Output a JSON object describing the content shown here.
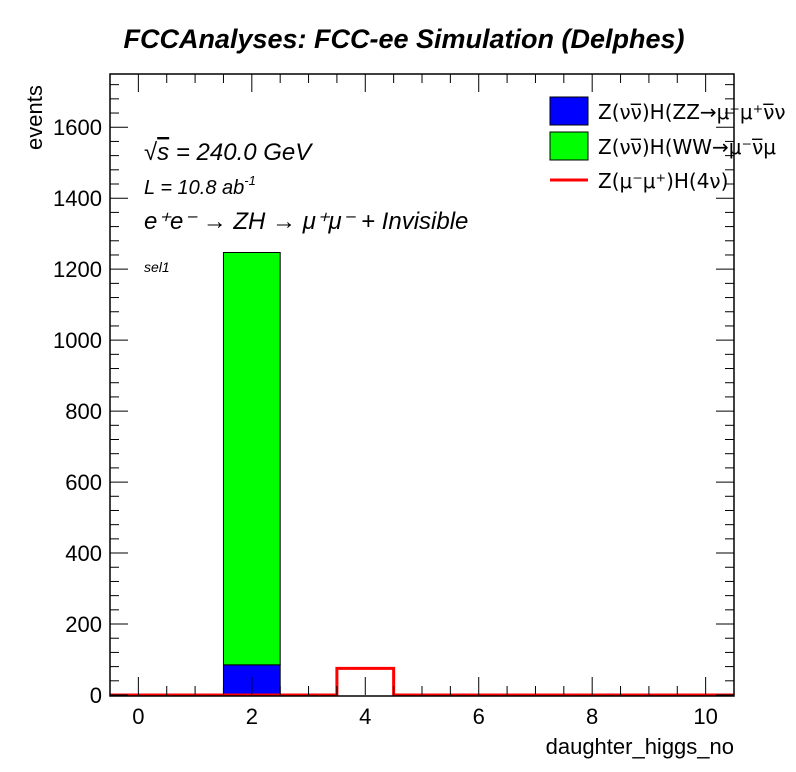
{
  "colors": {
    "zz_fill": "#0000ff",
    "ww_fill": "#00ff00",
    "signal_line": "#ff0000",
    "frame": "#000000"
  },
  "chart_data": {
    "type": "bar",
    "title": "FCCAnalyses: FCC-ee Simulation (Delphes)",
    "xlabel": "daughter_higgs_no",
    "ylabel": "events",
    "xlim": [
      -0.5,
      10.5
    ],
    "ylim": [
      0,
      1750
    ],
    "x_ticks": [
      0,
      2,
      4,
      6,
      8,
      10
    ],
    "y_ticks": [
      0,
      200,
      400,
      600,
      800,
      1000,
      1200,
      1400,
      1600
    ],
    "bin_edges": [
      -0.5,
      0.5,
      1.5,
      2.5,
      3.5,
      4.5,
      5.5,
      6.5,
      7.5,
      8.5,
      9.5,
      10.5
    ],
    "stacked_series": [
      {
        "name": "Z(νν̅)H(ZZ→μ⁻μ⁺νν̅)",
        "color": "#0000ff",
        "values": [
          0,
          0,
          85,
          0,
          0,
          0,
          0,
          0,
          0,
          0,
          0
        ]
      },
      {
        "name": "Z(νν̅)H(WW→μ⁻ν̅μ⁺ν)",
        "color": "#00ff00",
        "values": [
          0,
          0,
          1162,
          0,
          0,
          0,
          0,
          0,
          0,
          0,
          0
        ]
      }
    ],
    "line_series": [
      {
        "name": "Z(μ⁻μ⁺)H(4ν)",
        "color": "#ff0000",
        "values": [
          0,
          0,
          0,
          0,
          75,
          0,
          0,
          0,
          0,
          0,
          0
        ]
      }
    ],
    "legend": {
      "placement": "top-right",
      "entries": [
        "Z(νν̅)H(ZZ→μ⁻μ⁺ν̅ν",
        "Z(νν̅)H(WW→μ⁻ν̅μ",
        "Z(μ⁻μ⁺)H(4ν)"
      ]
    },
    "annotations": {
      "energy_prefix": "√",
      "energy_s": "s",
      "energy_rest": " = 240.0 GeV",
      "lumi_base": "L = 10.8 ab",
      "lumi_exp": "-1",
      "process": "e⁺e⁻ → ZH → μ⁺μ⁻ + Invisible",
      "selection": "sel1"
    }
  }
}
